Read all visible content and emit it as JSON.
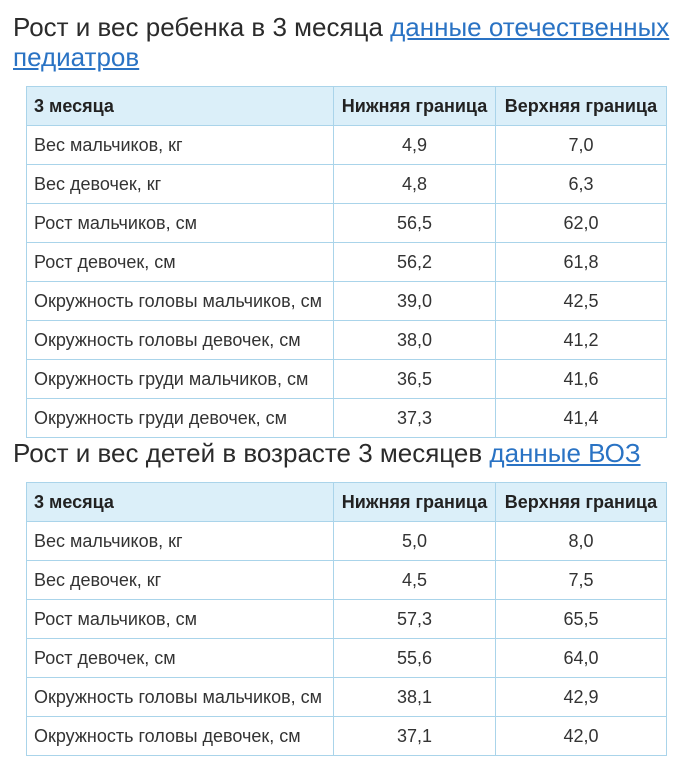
{
  "section1": {
    "title": "Рост и вес ребенка в 3 месяца",
    "link": "данные отечественных педиатров",
    "headers": [
      "3 месяца",
      "Нижняя граница",
      "Верхняя граница"
    ],
    "rows": [
      [
        "Вес мальчиков, кг",
        "4,9",
        "7,0"
      ],
      [
        "Вес девочек, кг",
        "4,8",
        "6,3"
      ],
      [
        "Рост мальчиков, см",
        "56,5",
        "62,0"
      ],
      [
        "Рост девочек, см",
        "56,2",
        "61,8"
      ],
      [
        "Окружность головы мальчиков, см",
        "39,0",
        "42,5"
      ],
      [
        "Окружность головы девочек, см",
        "38,0",
        "41,2"
      ],
      [
        "Окружность груди мальчиков, см",
        "36,5",
        "41,6"
      ],
      [
        "Окружность груди девочек, см",
        "37,3",
        "41,4"
      ]
    ]
  },
  "section2": {
    "title": "Рост и вес детей в возрасте 3 месяцев",
    "link": "данные ВОЗ",
    "headers": [
      "3 месяца",
      "Нижняя граница",
      "Верхняя граница"
    ],
    "rows": [
      [
        "Вес мальчиков, кг",
        "5,0",
        "8,0"
      ],
      [
        "Вес девочек, кг",
        "4,5",
        "7,5"
      ],
      [
        "Рост мальчиков, см",
        "57,3",
        "65,5"
      ],
      [
        "Рост девочек, см",
        "55,6",
        "64,0"
      ],
      [
        "Окружность головы мальчиков, см",
        "38,1",
        "42,9"
      ],
      [
        "Окружность головы девочек, см",
        "37,1",
        "42,0"
      ]
    ]
  },
  "colors": {
    "text": "#333333",
    "link": "#2a73c4",
    "header_bg": "#dbeff9",
    "border": "#aad4ea"
  }
}
